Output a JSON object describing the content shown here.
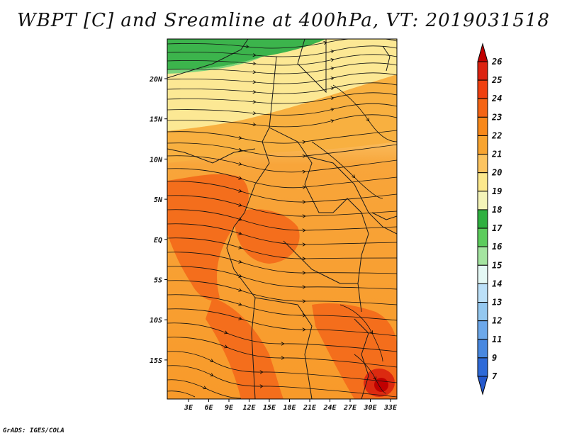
{
  "title": "WBPT [C] and Sreamline at 400hPa, VT: 2019031518",
  "credit": "GrADS: IGES/COLA",
  "map": {
    "lon_labels": [
      "3E",
      "6E",
      "9E",
      "12E",
      "15E",
      "18E",
      "21E",
      "24E",
      "27E",
      "30E",
      "33E"
    ],
    "lat_labels": [
      "20N",
      "15N",
      "10N",
      "5N",
      "EQ",
      "5S",
      "10S",
      "15S"
    ]
  },
  "colorbar": {
    "labels": [
      "26",
      "25",
      "24",
      "23",
      "22",
      "21",
      "20",
      "19",
      "18",
      "17",
      "16",
      "15",
      "14",
      "13",
      "12",
      "11",
      "9",
      "7"
    ],
    "colors": [
      "#c00000",
      "#dc2210",
      "#f04010",
      "#f46414",
      "#f8881a",
      "#f8a430",
      "#fcc460",
      "#fce88c",
      "#f4f4b8",
      "#2fb040",
      "#5ccc5c",
      "#a4e4a0",
      "#e4f8f4",
      "#bce0f8",
      "#94c8f0",
      "#6ca8ea",
      "#4888e0",
      "#2e6ad8",
      "#2458cc"
    ]
  }
}
